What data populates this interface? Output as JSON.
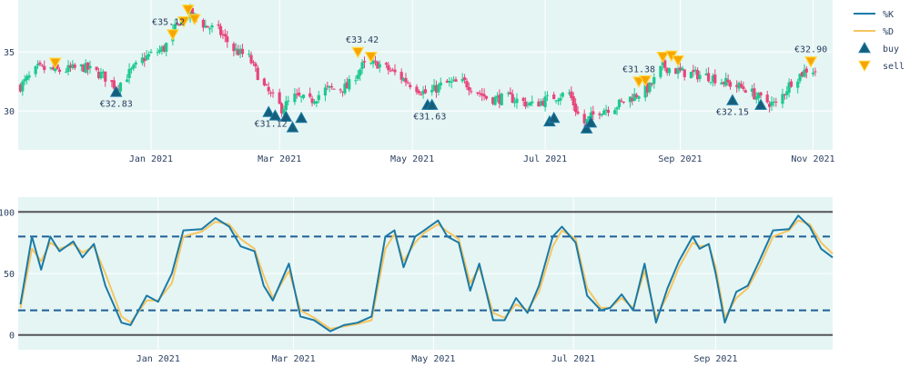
{
  "colors": {
    "plot_bg": "#e5f5f4",
    "grid": "#ffffff",
    "up": "#1dc98e",
    "down": "#e8457a",
    "k_line": "#1a7aa6",
    "d_line": "#f6c560",
    "buy_marker": "#155e7a",
    "sell_marker": "#f7a400",
    "sell_edge": "#ffd740",
    "ref_solid": "#555555",
    "ref_dashed": "#1f5f96"
  },
  "legend": {
    "k_label": "%K",
    "d_label": "%D",
    "buy_label": "buy",
    "sell_label": "sell"
  },
  "chart_data": [
    {
      "type": "candlestick",
      "x_start": "2020-11-02",
      "x_range": [
        "2020-11-01",
        "2021-11-10"
      ],
      "x_ticks": [
        {
          "date": "2021-01-01",
          "label": "Jan 2021"
        },
        {
          "date": "2021-03-01",
          "label": "Mar 2021"
        },
        {
          "date": "2021-05-01",
          "label": "May 2021"
        },
        {
          "date": "2021-07-01",
          "label": "Jul 2021"
        },
        {
          "date": "2021-09-01",
          "label": "Sep 2021"
        },
        {
          "date": "2021-11-01",
          "label": "Nov 2021"
        }
      ],
      "y_range": [
        26.7,
        39.4
      ],
      "y_ticks": [
        30,
        35
      ],
      "close_anchors": [
        [
          "2020-11-02",
          32.1
        ],
        [
          "2020-11-10",
          33.6
        ],
        [
          "2020-11-20",
          33.4
        ],
        [
          "2020-12-01",
          33.7
        ],
        [
          "2020-12-10",
          33.0
        ],
        [
          "2020-12-16",
          32.0
        ],
        [
          "2020-12-22",
          33.2
        ],
        [
          "2020-12-29",
          34.5
        ],
        [
          "2021-01-07",
          35.3
        ],
        [
          "2021-01-14",
          37.6
        ],
        [
          "2021-01-19",
          38.3
        ],
        [
          "2021-01-26",
          37.2
        ],
        [
          "2021-02-01",
          36.8
        ],
        [
          "2021-02-08",
          35.2
        ],
        [
          "2021-02-15",
          34.5
        ],
        [
          "2021-02-22",
          32.0
        ],
        [
          "2021-03-02",
          30.2
        ],
        [
          "2021-03-08",
          31.2
        ],
        [
          "2021-03-15",
          30.8
        ],
        [
          "2021-03-22",
          31.8
        ],
        [
          "2021-04-01",
          32.0
        ],
        [
          "2021-04-08",
          33.8
        ],
        [
          "2021-04-15",
          34.0
        ],
        [
          "2021-04-22",
          33.3
        ],
        [
          "2021-05-01",
          32.2
        ],
        [
          "2021-05-08",
          31.4
        ],
        [
          "2021-05-15",
          32.3
        ],
        [
          "2021-05-25",
          32.4
        ],
        [
          "2021-06-05",
          31.0
        ],
        [
          "2021-06-15",
          31.1
        ],
        [
          "2021-06-25",
          30.5
        ],
        [
          "2021-07-05",
          31.2
        ],
        [
          "2021-07-12",
          31.5
        ],
        [
          "2021-07-18",
          28.8
        ],
        [
          "2021-07-25",
          30.0
        ],
        [
          "2021-08-02",
          30.4
        ],
        [
          "2021-08-10",
          31.2
        ],
        [
          "2021-08-18",
          32.0
        ],
        [
          "2021-08-24",
          33.8
        ],
        [
          "2021-09-01",
          33.3
        ],
        [
          "2021-09-08",
          33.1
        ],
        [
          "2021-09-15",
          32.9
        ],
        [
          "2021-09-25",
          32.2
        ],
        [
          "2021-10-01",
          31.9
        ],
        [
          "2021-10-08",
          31.0
        ],
        [
          "2021-10-15",
          30.5
        ],
        [
          "2021-10-22",
          32.5
        ],
        [
          "2021-10-29",
          33.5
        ],
        [
          "2021-11-03",
          33.4
        ]
      ],
      "buy_signals": [
        {
          "date": "2020-12-16",
          "price": 31.6
        },
        {
          "date": "2021-02-24",
          "price": 29.9
        },
        {
          "date": "2021-02-27",
          "price": 29.6
        },
        {
          "date": "2021-03-04",
          "price": 29.5
        },
        {
          "date": "2021-03-07",
          "price": 28.6
        },
        {
          "date": "2021-03-11",
          "price": 29.4
        },
        {
          "date": "2021-05-08",
          "price": 30.5
        },
        {
          "date": "2021-05-10",
          "price": 30.5
        },
        {
          "date": "2021-07-03",
          "price": 29.1
        },
        {
          "date": "2021-07-05",
          "price": 29.4
        },
        {
          "date": "2021-07-20",
          "price": 28.5
        },
        {
          "date": "2021-07-22",
          "price": 29.0
        },
        {
          "date": "2021-09-25",
          "price": 30.9
        },
        {
          "date": "2021-10-08",
          "price": 30.5
        }
      ],
      "sell_signals": [
        {
          "date": "2020-11-18",
          "price": 34.1
        },
        {
          "date": "2021-01-11",
          "price": 36.5
        },
        {
          "date": "2021-01-16",
          "price": 37.6
        },
        {
          "date": "2021-01-18",
          "price": 38.6
        },
        {
          "date": "2021-01-21",
          "price": 37.8
        },
        {
          "date": "2021-04-06",
          "price": 35.0
        },
        {
          "date": "2021-04-12",
          "price": 34.6
        },
        {
          "date": "2021-08-13",
          "price": 32.5
        },
        {
          "date": "2021-08-16",
          "price": 32.6
        },
        {
          "date": "2021-08-24",
          "price": 34.6
        },
        {
          "date": "2021-08-28",
          "price": 34.7
        },
        {
          "date": "2021-08-31",
          "price": 34.3
        },
        {
          "date": "2021-10-31",
          "price": 34.2
        }
      ],
      "annotations": [
        {
          "text": "€32.83",
          "date": "2020-12-16",
          "price": 31.6,
          "pos": "below"
        },
        {
          "text": "€35.12",
          "date": "2021-01-09",
          "price": 36.5,
          "pos": "above"
        },
        {
          "text": "€31.12",
          "date": "2021-02-25",
          "price": 29.9,
          "pos": "below"
        },
        {
          "text": "€33.42",
          "date": "2021-04-08",
          "price": 35.0,
          "pos": "above"
        },
        {
          "text": "€31.63",
          "date": "2021-05-09",
          "price": 30.5,
          "pos": "below"
        },
        {
          "text": "€31.38",
          "date": "2021-08-13",
          "price": 32.5,
          "pos": "above"
        },
        {
          "text": "€32.15",
          "date": "2021-09-25",
          "price": 30.9,
          "pos": "below"
        },
        {
          "text": "€32.90",
          "date": "2021-10-31",
          "price": 34.2,
          "pos": "above"
        }
      ]
    },
    {
      "type": "line",
      "x_range": [
        "2020-11-01",
        "2021-10-22"
      ],
      "x_ticks": [
        {
          "date": "2021-01-01",
          "label": "Jan 2021"
        },
        {
          "date": "2021-03-01",
          "label": "Mar 2021"
        },
        {
          "date": "2021-05-01",
          "label": "May 2021"
        },
        {
          "date": "2021-07-01",
          "label": "Jul 2021"
        },
        {
          "date": "2021-09-01",
          "label": "Sep 2021"
        }
      ],
      "y_range": [
        -12,
        112
      ],
      "y_ticks": [
        0,
        50,
        100
      ],
      "ref_lines": [
        {
          "y": 100,
          "style": "solid"
        },
        {
          "y": 80,
          "style": "dashed"
        },
        {
          "y": 20,
          "style": "dashed"
        },
        {
          "y": 0,
          "style": "solid"
        }
      ],
      "series": [
        {
          "name": "%K",
          "points": [
            [
              "2020-11-02",
              25
            ],
            [
              "2020-11-07",
              80
            ],
            [
              "2020-11-11",
              53
            ],
            [
              "2020-11-15",
              80
            ],
            [
              "2020-11-19",
              68
            ],
            [
              "2020-11-25",
              76
            ],
            [
              "2020-11-29",
              63
            ],
            [
              "2020-12-04",
              74
            ],
            [
              "2020-12-09",
              40
            ],
            [
              "2020-12-16",
              10
            ],
            [
              "2020-12-20",
              8
            ],
            [
              "2020-12-27",
              32
            ],
            [
              "2021-01-01",
              27
            ],
            [
              "2021-01-07",
              50
            ],
            [
              "2021-01-12",
              85
            ],
            [
              "2021-01-20",
              86
            ],
            [
              "2021-01-26",
              95
            ],
            [
              "2021-02-01",
              88
            ],
            [
              "2021-02-06",
              72
            ],
            [
              "2021-02-12",
              68
            ],
            [
              "2021-02-16",
              40
            ],
            [
              "2021-02-20",
              28
            ],
            [
              "2021-02-27",
              58
            ],
            [
              "2021-03-04",
              15
            ],
            [
              "2021-03-10",
              12
            ],
            [
              "2021-03-17",
              3
            ],
            [
              "2021-03-23",
              8
            ],
            [
              "2021-03-29",
              10
            ],
            [
              "2021-04-04",
              15
            ],
            [
              "2021-04-10",
              80
            ],
            [
              "2021-04-14",
              85
            ],
            [
              "2021-04-18",
              55
            ],
            [
              "2021-04-23",
              80
            ],
            [
              "2021-04-27",
              85
            ],
            [
              "2021-05-03",
              93
            ],
            [
              "2021-05-07",
              80
            ],
            [
              "2021-05-12",
              75
            ],
            [
              "2021-05-17",
              36
            ],
            [
              "2021-05-21",
              58
            ],
            [
              "2021-05-27",
              12
            ],
            [
              "2021-06-01",
              12
            ],
            [
              "2021-06-06",
              30
            ],
            [
              "2021-06-11",
              18
            ],
            [
              "2021-06-16",
              40
            ],
            [
              "2021-06-22",
              80
            ],
            [
              "2021-06-26",
              88
            ],
            [
              "2021-07-02",
              75
            ],
            [
              "2021-07-07",
              32
            ],
            [
              "2021-07-13",
              20
            ],
            [
              "2021-07-17",
              22
            ],
            [
              "2021-07-22",
              33
            ],
            [
              "2021-07-27",
              20
            ],
            [
              "2021-08-01",
              58
            ],
            [
              "2021-08-06",
              10
            ],
            [
              "2021-08-11",
              38
            ],
            [
              "2021-08-16",
              60
            ],
            [
              "2021-08-22",
              80
            ],
            [
              "2021-08-25",
              70
            ],
            [
              "2021-08-29",
              74
            ],
            [
              "2021-09-01",
              50
            ],
            [
              "2021-09-05",
              10
            ],
            [
              "2021-09-10",
              35
            ],
            [
              "2021-09-15",
              40
            ],
            [
              "2021-09-20",
              60
            ],
            [
              "2021-09-26",
              85
            ],
            [
              "2021-10-03",
              86
            ],
            [
              "2021-10-07",
              97
            ],
            [
              "2021-10-12",
              88
            ],
            [
              "2021-10-17",
              70
            ],
            [
              "2021-10-22",
              63
            ]
          ]
        },
        {
          "name": "%D",
          "points": [
            [
              "2020-11-02",
              22
            ],
            [
              "2020-11-07",
              70
            ],
            [
              "2020-11-11",
              60
            ],
            [
              "2020-11-15",
              75
            ],
            [
              "2020-11-19",
              70
            ],
            [
              "2020-11-25",
              74
            ],
            [
              "2020-11-29",
              67
            ],
            [
              "2020-12-04",
              72
            ],
            [
              "2020-12-09",
              50
            ],
            [
              "2020-12-16",
              15
            ],
            [
              "2020-12-20",
              10
            ],
            [
              "2020-12-27",
              28
            ],
            [
              "2021-01-01",
              28
            ],
            [
              "2021-01-07",
              42
            ],
            [
              "2021-01-12",
              80
            ],
            [
              "2021-01-20",
              84
            ],
            [
              "2021-01-26",
              92
            ],
            [
              "2021-02-01",
              90
            ],
            [
              "2021-02-06",
              78
            ],
            [
              "2021-02-12",
              70
            ],
            [
              "2021-02-16",
              48
            ],
            [
              "2021-02-20",
              30
            ],
            [
              "2021-02-27",
              52
            ],
            [
              "2021-03-04",
              20
            ],
            [
              "2021-03-10",
              14
            ],
            [
              "2021-03-17",
              5
            ],
            [
              "2021-03-23",
              7
            ],
            [
              "2021-03-29",
              9
            ],
            [
              "2021-04-04",
              12
            ],
            [
              "2021-04-10",
              70
            ],
            [
              "2021-04-14",
              82
            ],
            [
              "2021-04-18",
              60
            ],
            [
              "2021-04-23",
              75
            ],
            [
              "2021-04-27",
              83
            ],
            [
              "2021-05-03",
              90
            ],
            [
              "2021-05-07",
              84
            ],
            [
              "2021-05-12",
              78
            ],
            [
              "2021-05-17",
              42
            ],
            [
              "2021-05-21",
              55
            ],
            [
              "2021-05-27",
              18
            ],
            [
              "2021-06-01",
              14
            ],
            [
              "2021-06-06",
              25
            ],
            [
              "2021-06-11",
              20
            ],
            [
              "2021-06-16",
              35
            ],
            [
              "2021-06-22",
              72
            ],
            [
              "2021-06-26",
              85
            ],
            [
              "2021-07-02",
              78
            ],
            [
              "2021-07-07",
              38
            ],
            [
              "2021-07-13",
              22
            ],
            [
              "2021-07-17",
              22
            ],
            [
              "2021-07-22",
              30
            ],
            [
              "2021-07-27",
              22
            ],
            [
              "2021-08-01",
              52
            ],
            [
              "2021-08-06",
              14
            ],
            [
              "2021-08-11",
              32
            ],
            [
              "2021-08-16",
              55
            ],
            [
              "2021-08-22",
              75
            ],
            [
              "2021-08-25",
              72
            ],
            [
              "2021-08-29",
              73
            ],
            [
              "2021-09-01",
              55
            ],
            [
              "2021-09-05",
              14
            ],
            [
              "2021-09-10",
              30
            ],
            [
              "2021-09-15",
              38
            ],
            [
              "2021-09-20",
              55
            ],
            [
              "2021-09-26",
              80
            ],
            [
              "2021-10-03",
              85
            ],
            [
              "2021-10-07",
              93
            ],
            [
              "2021-10-12",
              90
            ],
            [
              "2021-10-17",
              75
            ],
            [
              "2021-10-22",
              66
            ]
          ]
        }
      ]
    }
  ]
}
